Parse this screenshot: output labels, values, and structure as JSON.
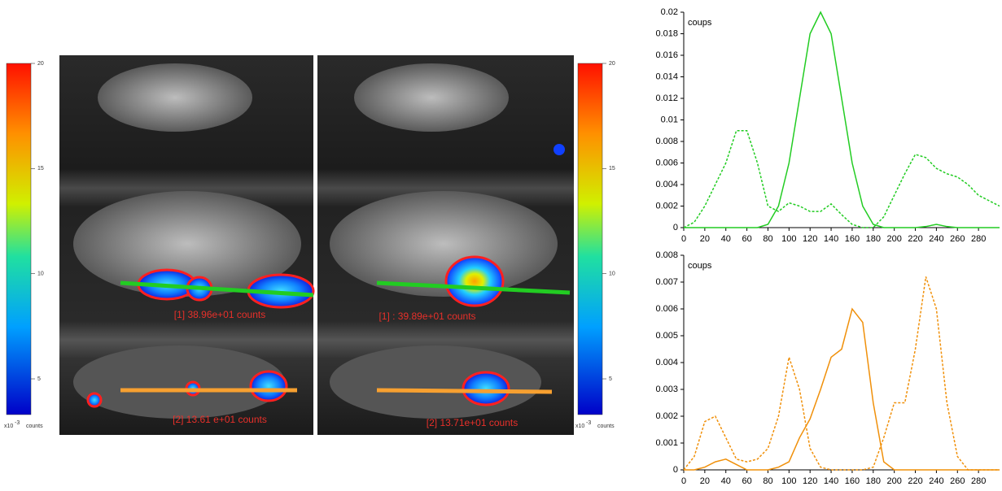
{
  "panels": [
    {
      "label_1": "[1] 38.96e+01 counts",
      "label_2": "[2] 13.61 e+01 counts"
    },
    {
      "label_1": "[1] : 39.89e+01 counts",
      "label_2": "[2] 13.71e+01 counts"
    }
  ],
  "colorbar": {
    "clim": [
      3.3,
      20
    ],
    "ticks": [
      5,
      10,
      15,
      20
    ],
    "unit_base": "x10",
    "unit_exponent": "-3",
    "unit": "counts"
  },
  "chart_data": [
    {
      "type": "line",
      "ylabel": "coups",
      "x": [
        0,
        10,
        20,
        30,
        40,
        50,
        60,
        70,
        80,
        90,
        100,
        110,
        120,
        130,
        140,
        150,
        160,
        170,
        180,
        190,
        200,
        210,
        220,
        230,
        240,
        250,
        260,
        270,
        280,
        290,
        300
      ],
      "series": [
        {
          "color": "#22cc22",
          "dash": "solid",
          "values": [
            0,
            0,
            0,
            0,
            0,
            0,
            0,
            0,
            0.0003,
            0.002,
            0.006,
            0.012,
            0.018,
            0.02,
            0.018,
            0.012,
            0.006,
            0.002,
            0.0003,
            0,
            0,
            0,
            0,
            0.0001,
            0.0003,
            0.0001,
            0,
            0,
            0,
            0,
            0
          ]
        },
        {
          "color": "#22cc22",
          "dash": "dashed",
          "values": [
            0,
            0.0005,
            0.002,
            0.004,
            0.006,
            0.009,
            0.009,
            0.006,
            0.002,
            0.0015,
            0.0023,
            0.002,
            0.0015,
            0.0015,
            0.0022,
            0.0012,
            0.0003,
            0,
            0,
            0.001,
            0.003,
            0.005,
            0.0068,
            0.0065,
            0.0055,
            0.005,
            0.0047,
            0.004,
            0.003,
            0.0025,
            0.002
          ]
        }
      ],
      "xlim": [
        0,
        300
      ],
      "xticks": [
        0,
        20,
        40,
        60,
        80,
        100,
        120,
        140,
        160,
        180,
        200,
        220,
        240,
        260,
        280
      ],
      "ylim": [
        0,
        0.02
      ],
      "yticks": [
        0,
        0.002,
        0.004,
        0.006,
        0.008,
        0.01,
        0.012,
        0.014,
        0.016,
        0.018,
        0.02
      ]
    },
    {
      "type": "line",
      "ylabel": "coups",
      "x": [
        0,
        10,
        20,
        30,
        40,
        50,
        60,
        70,
        80,
        90,
        100,
        110,
        120,
        130,
        140,
        150,
        160,
        170,
        180,
        190,
        200,
        210,
        220,
        230,
        240,
        250,
        260,
        270,
        280,
        290,
        300
      ],
      "series": [
        {
          "color": "#f0900a",
          "dash": "solid",
          "values": [
            0,
            0,
            0.0001,
            0.0003,
            0.0004,
            0.0002,
            0,
            0,
            0,
            0.0001,
            0.0003,
            0.0012,
            0.0019,
            0.003,
            0.0042,
            0.0045,
            0.006,
            0.0055,
            0.0025,
            0.0003,
            0,
            0,
            0,
            0,
            0,
            0,
            0,
            0,
            0,
            0,
            0
          ]
        },
        {
          "color": "#f0900a",
          "dash": "dashed",
          "values": [
            0,
            0.0005,
            0.0018,
            0.002,
            0.0012,
            0.0004,
            0.0003,
            0.0004,
            0.0008,
            0.002,
            0.0042,
            0.003,
            0.0008,
            0.0001,
            0,
            0,
            0,
            0,
            0.0001,
            0.0012,
            0.0025,
            0.0025,
            0.0045,
            0.0072,
            0.006,
            0.0025,
            0.0005,
            0,
            0,
            0,
            0
          ]
        }
      ],
      "xlim": [
        0,
        300
      ],
      "xticks": [
        0,
        20,
        40,
        60,
        80,
        100,
        120,
        140,
        160,
        180,
        200,
        220,
        240,
        260,
        280
      ],
      "ylim": [
        0,
        0.008
      ],
      "yticks": [
        0,
        0.001,
        0.002,
        0.003,
        0.004,
        0.005,
        0.006,
        0.007,
        0.008
      ]
    }
  ]
}
